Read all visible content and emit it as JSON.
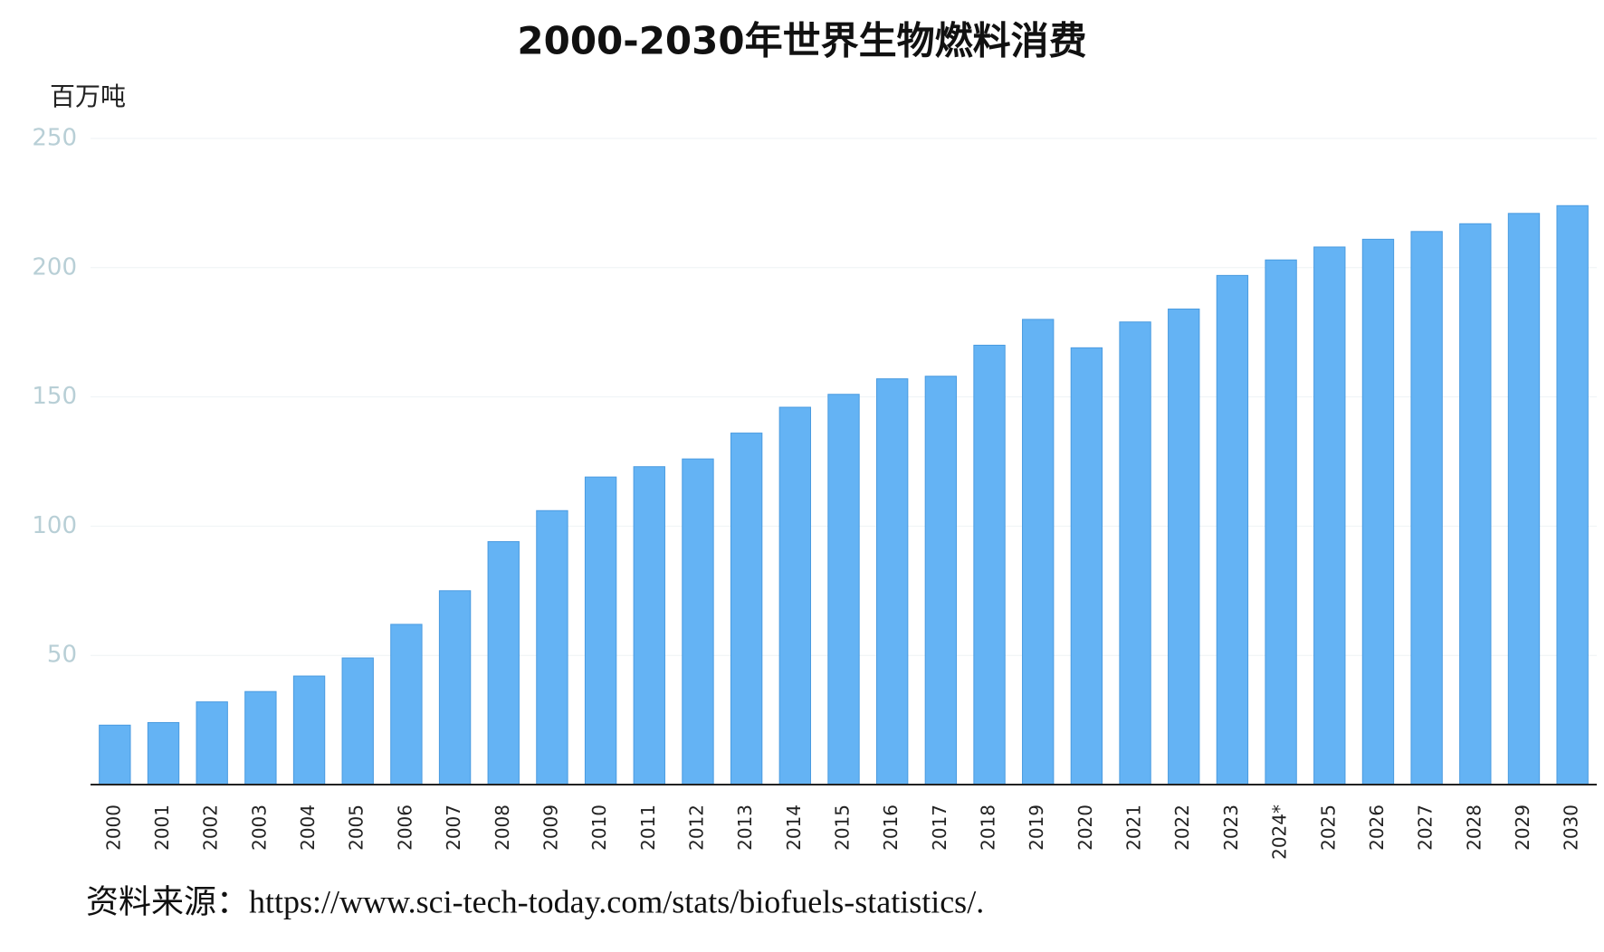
{
  "chart_data": {
    "type": "bar",
    "title": "2000-2030年世界生物燃料消费",
    "y_label": "百万吨",
    "source": "资料来源：https://www.sci-tech-today.com/stats/biofuels-statistics/.",
    "categories": [
      "2000",
      "2001",
      "2002",
      "2003",
      "2004",
      "2005",
      "2006",
      "2007",
      "2008",
      "2009",
      "2010",
      "2011",
      "2012",
      "2013",
      "2014",
      "2015",
      "2016",
      "2017",
      "2018",
      "2019",
      "2020",
      "2021",
      "2022",
      "2023",
      "2024*",
      "2025",
      "2026",
      "2027",
      "2028",
      "2029",
      "2030"
    ],
    "values": [
      23,
      24,
      32,
      36,
      42,
      49,
      62,
      75,
      94,
      106,
      119,
      123,
      126,
      136,
      146,
      151,
      157,
      158,
      170,
      180,
      169,
      179,
      184,
      197,
      203,
      208,
      211,
      214,
      217,
      221,
      224
    ],
    "color": "#64b3f4",
    "ylim": [
      0,
      250
    ],
    "yticks": [
      50,
      100,
      150,
      200,
      250
    ],
    "grid": true
  }
}
